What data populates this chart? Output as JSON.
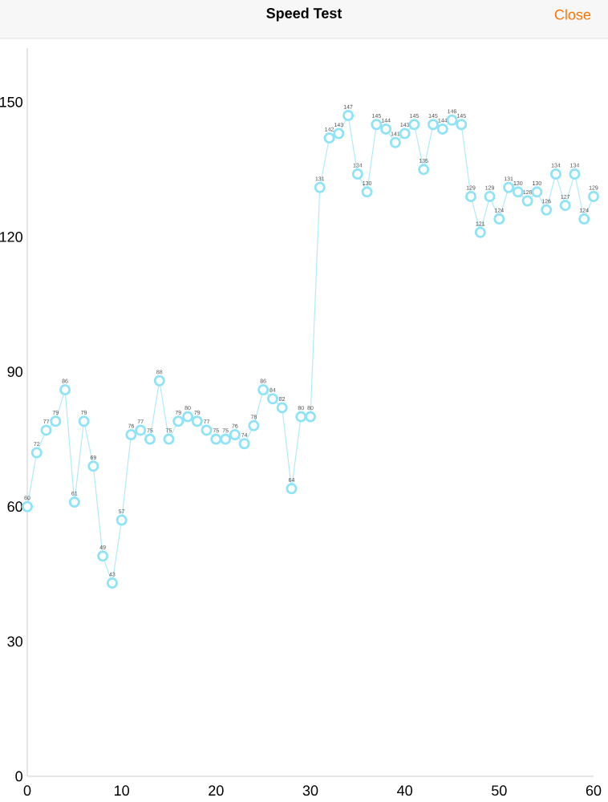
{
  "chart_data": {
    "type": "line",
    "title": "Speed Test",
    "annotations": [
      "Close"
    ],
    "x": [
      0,
      1,
      2,
      3,
      4,
      5,
      6,
      7,
      8,
      9,
      10,
      11,
      12,
      13,
      14,
      15,
      16,
      17,
      18,
      19,
      20,
      21,
      22,
      23,
      24,
      25,
      26,
      27,
      28,
      29,
      30,
      31,
      32,
      33,
      34,
      35,
      36,
      37,
      38,
      39,
      40,
      41,
      42,
      43,
      44,
      45,
      46,
      47,
      48,
      49,
      50,
      51,
      52,
      53,
      54,
      55,
      56,
      57,
      58,
      59,
      60
    ],
    "values": [
      60,
      72,
      77,
      79,
      86,
      61,
      79,
      69,
      49,
      43,
      57,
      76,
      77,
      75,
      88,
      75,
      79,
      80,
      79,
      77,
      75,
      75,
      76,
      74,
      78,
      86,
      84,
      82,
      64,
      80,
      80,
      131,
      142,
      143,
      147,
      134,
      130,
      145,
      144,
      141,
      143,
      145,
      135,
      145,
      144,
      146,
      145,
      129,
      121,
      129,
      124,
      131,
      130,
      128,
      130,
      126,
      134,
      127,
      134,
      124,
      129
    ],
    "color": "#8fe3f7",
    "marker": "circle",
    "data_labels": true,
    "xlim": [
      0,
      60
    ],
    "ylim": [
      0,
      162
    ],
    "xticks": [
      0,
      10,
      20,
      30,
      40,
      50,
      60
    ],
    "yticks": [
      0,
      30,
      60,
      90,
      120,
      150
    ]
  }
}
